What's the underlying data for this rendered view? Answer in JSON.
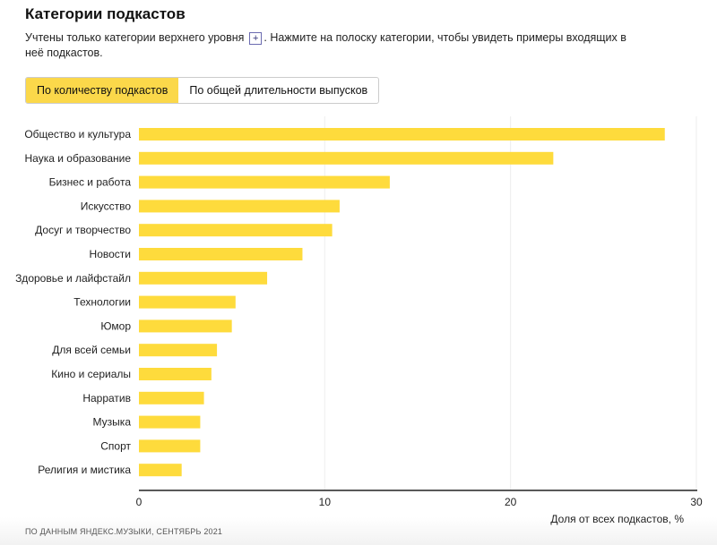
{
  "header": {
    "title": "Категории подкастов",
    "desc_before": "Учтены только категории верхнего уровня",
    "plus_label": "+",
    "desc_after": ". Нажмите на полоску категории, чтобы увидеть примеры входящих в неё подкастов."
  },
  "toggle": {
    "options": [
      "По количеству подкастов",
      "По общей длительности выпусков"
    ],
    "selected": 0
  },
  "source": "ПО ДАННЫМ ЯНДЕКС.МУЗЫКИ, СЕНТЯБРЬ 2021",
  "colors": {
    "bar": "#fedb3c",
    "active_toggle": "#fbd84a"
  },
  "chart_data": {
    "type": "bar",
    "orientation": "horizontal",
    "categories": [
      "Общество и культура",
      "Наука и образование",
      "Бизнес и работа",
      "Искусство",
      "Досуг и творчество",
      "Новости",
      "Здоровье и лайфстайл",
      "Технологии",
      "Юмор",
      "Для всей семьи",
      "Кино и сериалы",
      "Нарратив",
      "Музыка",
      "Спорт",
      "Религия и мистика"
    ],
    "values": [
      28.3,
      22.3,
      13.5,
      10.8,
      10.4,
      8.8,
      6.9,
      5.2,
      5.0,
      4.2,
      3.9,
      3.5,
      3.3,
      3.3,
      2.3
    ],
    "xlabel": "Доля от всех подкастов, %",
    "xlim": [
      0,
      30
    ],
    "xticks": [
      0,
      10,
      20,
      30
    ],
    "grid": true
  }
}
